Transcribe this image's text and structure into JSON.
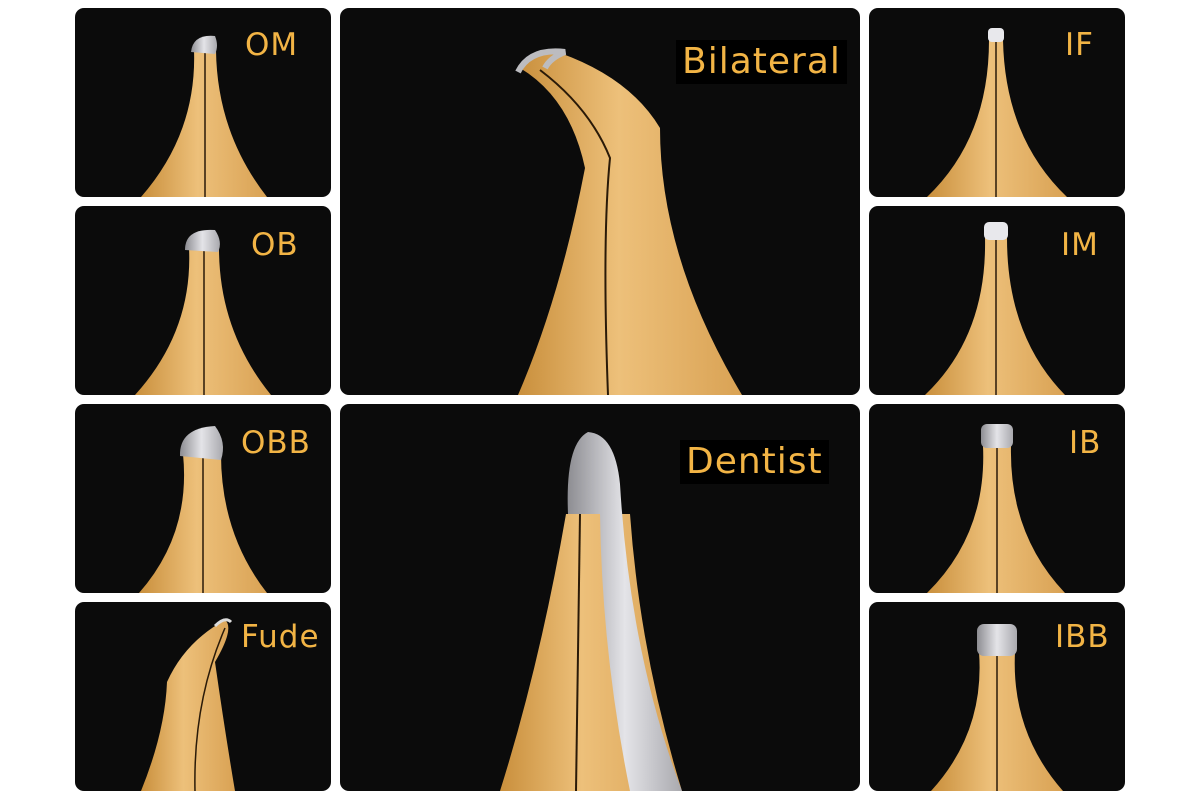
{
  "colors": {
    "label": "#f2b445",
    "nib_gold": "#e0ad5c",
    "tip_silver": "#c9c9cc",
    "tile_bg": "#0b0b0b"
  },
  "tiles": {
    "om": "OM",
    "ob": "OB",
    "obb": "OBB",
    "fude": "Fude",
    "bilateral": "Bilateral",
    "dentist": "Dentist",
    "if": "IF",
    "im": "IM",
    "ib": "IB",
    "ibb": "IBB"
  }
}
